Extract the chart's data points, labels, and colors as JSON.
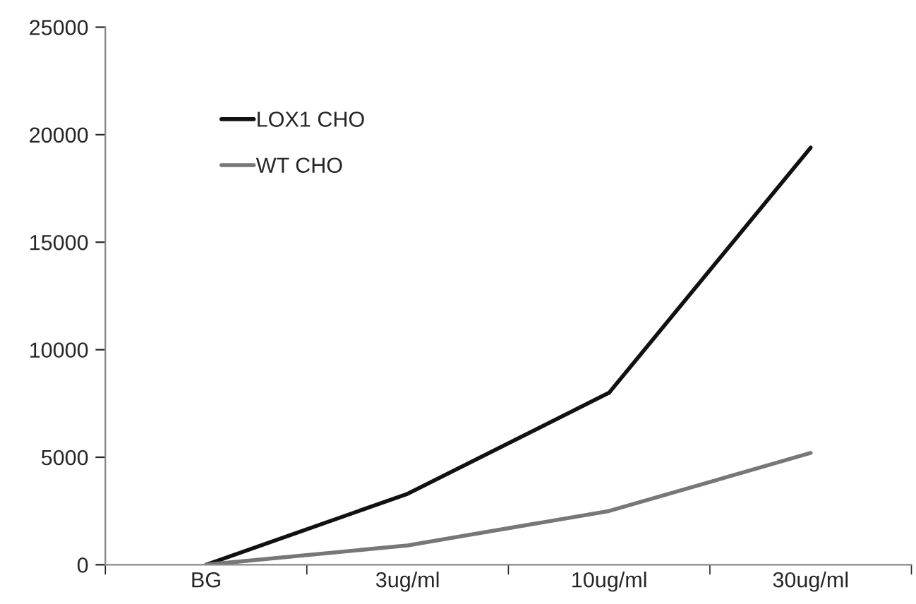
{
  "chart_data": {
    "type": "line",
    "categories": [
      "BG",
      "3ug/ml",
      "10ug/ml",
      "30ug/ml"
    ],
    "series": [
      {
        "name": "LOX1 CHO",
        "color": "#111111",
        "values": [
          0,
          3300,
          8000,
          19400
        ]
      },
      {
        "name": "WT CHO",
        "color": "#777777",
        "values": [
          0,
          900,
          2500,
          5200
        ]
      }
    ],
    "ylim": [
      0,
      25000
    ],
    "yticks": [
      0,
      5000,
      10000,
      15000,
      20000,
      25000
    ],
    "grid": false,
    "legend": "top left",
    "marker": "none",
    "line_style": "solid"
  }
}
